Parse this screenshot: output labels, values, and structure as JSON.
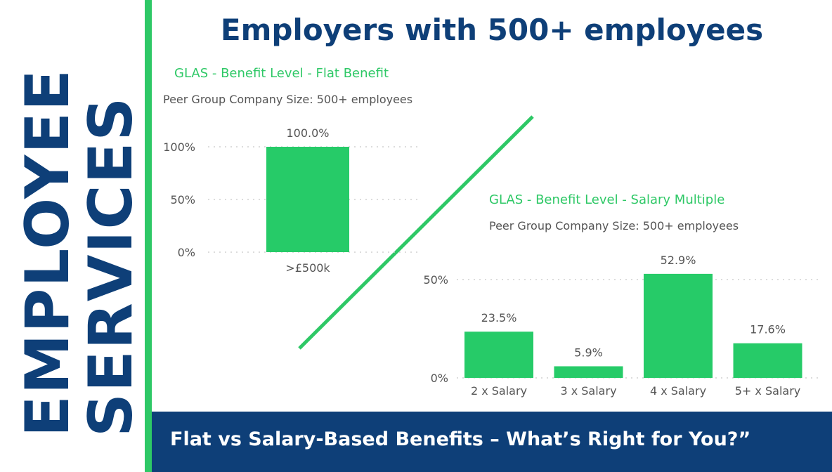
{
  "sidebar": {
    "line1": "EMPLOYEE",
    "line2": "SERVICES"
  },
  "header": {
    "title": "Employers with 500+ employees"
  },
  "footer": {
    "text": "Flat vs Salary-Based Benefits – What’s Right for You?”"
  },
  "colors": {
    "navy": "#0e3f78",
    "green": "#2ec866",
    "bar": "#26cb68",
    "text_gray": "#555555"
  },
  "chart_data": [
    {
      "type": "bar",
      "title": "GLAS - Benefit Level - Flat Benefit",
      "subtitle": "Peer Group Company Size: 500+ employees",
      "categories": [
        ">£500k"
      ],
      "values": [
        100.0
      ],
      "data_labels": [
        "100.0%"
      ],
      "yticks": [
        "0%",
        "50%",
        "100%"
      ],
      "ylim": [
        0,
        100
      ],
      "grid": true
    },
    {
      "type": "bar",
      "title": "GLAS - Benefit Level - Salary Multiple",
      "subtitle": "Peer Group Company Size: 500+ employees",
      "categories": [
        "2 x Salary",
        "3 x Salary",
        "4 x Salary",
        "5+ x Salary"
      ],
      "values": [
        23.5,
        5.9,
        52.9,
        17.6
      ],
      "data_labels": [
        "23.5%",
        "5.9%",
        "52.9%",
        "17.6%"
      ],
      "yticks": [
        "0%",
        "50%"
      ],
      "ylim": [
        0,
        50
      ],
      "grid": true
    }
  ]
}
